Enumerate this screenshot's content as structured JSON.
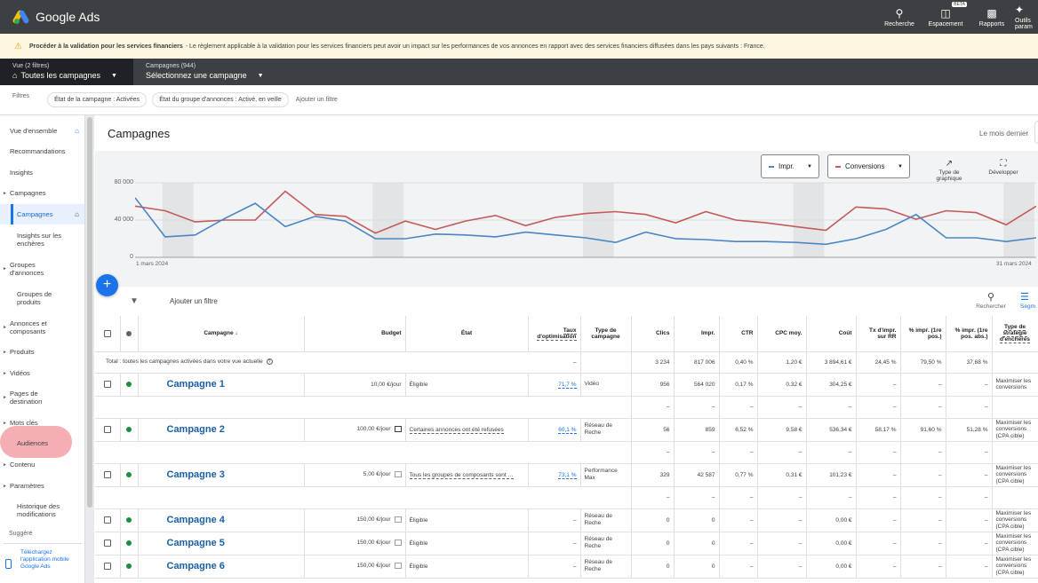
{
  "app": {
    "title": "Google Ads"
  },
  "topbar": {
    "actions": [
      {
        "label": "Recherche",
        "icon": "search-icon"
      },
      {
        "label": "Espacement",
        "icon": "layout-icon",
        "badge": "BÊTA"
      },
      {
        "label": "Rapports",
        "icon": "chart-icon"
      },
      {
        "label": "Outils param",
        "icon": "wrench-icon"
      }
    ]
  },
  "banner": {
    "bold": "Procéder à la validation pour les services financiers",
    "text": "- Le règlement applicable à la validation pour les services financiers peut avoir un impact sur les performances de vos annonces en rapport avec des services financiers diffusées dans les pays suivants : France."
  },
  "scope": {
    "view_sub": "Vue (2 filtres)",
    "view_main": "Toutes les campagnes",
    "campaign_sub": "Campagnes (944)",
    "campaign_main": "Sélectionnez une campagne"
  },
  "filters": {
    "label": "Filtres",
    "chips": [
      "État de la campagne : Activées",
      "État du groupe d'annonces : Activé, en veille"
    ],
    "add": "Ajouter un filtre"
  },
  "sidebar": {
    "items": [
      {
        "label": "Vue d'ensemble",
        "home": true
      },
      {
        "label": "Recommandations"
      },
      {
        "label": "Insights"
      },
      {
        "label": "Campagnes",
        "bullet": true
      },
      {
        "label": "Campagnes",
        "active": true,
        "home": true
      },
      {
        "label": "Insights sur les enchères"
      },
      {
        "label": "Groupes d'annonces",
        "bullet": true
      },
      {
        "label": "Groupes de produits"
      },
      {
        "label": "Annonces et composants",
        "bullet": true
      },
      {
        "label": "Produits",
        "bullet": true
      },
      {
        "label": "Vidéos",
        "bullet": true
      },
      {
        "label": "Pages de destination",
        "bullet": true
      },
      {
        "label": "Mots clés",
        "bullet": true
      },
      {
        "label": "Audiences"
      },
      {
        "label": "Contenu",
        "bullet": true
      },
      {
        "label": "Paramètres",
        "bullet": true
      },
      {
        "label": "Historique des modifications"
      }
    ],
    "suggest": "Suggéré",
    "download": "Téléchargez l'application mobile Google Ads"
  },
  "main": {
    "title": "Campagnes",
    "date_range": "Le mois dernier"
  },
  "chart": {
    "metric1": "Impr.",
    "metric2": "Conversions",
    "color1": "#4a86c5",
    "color2": "#c45a5a",
    "tool1": "Type de graphique",
    "tool2": "Développer"
  },
  "chart_data": {
    "type": "line",
    "x_start_label": "1 mars 2024",
    "x_end_label": "31 mars 2024",
    "yticks": [
      "80 000",
      "40 000",
      "0"
    ],
    "ylim": [
      0,
      80000
    ],
    "series": [
      {
        "name": "Impr.",
        "values": [
          64000,
          22000,
          24000,
          42000,
          58000,
          33000,
          44000,
          39000,
          20000,
          20000,
          25000,
          24000,
          22000,
          27000,
          24000,
          21000,
          16000,
          27000,
          20000,
          19000,
          17000,
          17000,
          16000,
          14000,
          20000,
          30000,
          46000,
          21000,
          21000,
          17000,
          21000
        ]
      },
      {
        "name": "Conversions",
        "values": [
          55000,
          50000,
          38000,
          40000,
          40000,
          71000,
          46000,
          44000,
          26000,
          39000,
          30000,
          39000,
          45000,
          34000,
          43000,
          47000,
          49000,
          46000,
          37000,
          49000,
          40000,
          37000,
          33000,
          29000,
          54000,
          52000,
          41000,
          50000,
          48000,
          35000,
          55000
        ]
      }
    ]
  },
  "table_tools": {
    "add_filter": "Ajouter un filtre",
    "search": "Rechercher",
    "segment": "Segm"
  },
  "table": {
    "headers": {
      "campaign": "Campagne",
      "budget": "Budget",
      "status": "État",
      "opt": "Taux d'optimisation",
      "type": "Type de campagne",
      "clicks": "Clics",
      "impr": "Impr.",
      "ctr": "CTR",
      "cpc": "CPC moy.",
      "cost": "Coût",
      "rr": "Tx d'impr. sur RR",
      "top": "% impr. (1re pos.)",
      "abs": "% impr. (1re pos. abs.)",
      "strategy": "Type de stratégie d'enchères"
    },
    "total": {
      "label": "Total : toutes les campagnes activées dans votre vue actuelle",
      "opt": "–",
      "clicks": "3 234",
      "impr": "817 006",
      "ctr": "0,40 %",
      "cpc": "1,20 €",
      "cost": "3 894,61 €",
      "rr": "24,45 %",
      "top": "79,50 %",
      "abs": "37,68 %"
    },
    "rows": [
      {
        "name": "Campagne 1",
        "budget": "10,00 €/jour",
        "status": "Éligible",
        "opt": "71,7 %",
        "type": "Vidéo",
        "clicks": "956",
        "impr": "564 020",
        "ctr": "0,17 %",
        "cpc": "0,32 €",
        "cost": "304,25 €",
        "rr": "–",
        "top": "–",
        "abs": "–",
        "strategy": "Maximiser les conversions"
      },
      {
        "name": "Campagne 2",
        "budget": "100,00 €/jour",
        "status": "Certaines annonces ont été refusées",
        "opt": "60,1 %",
        "type": "Réseau de Reche",
        "clicks": "56",
        "impr": "859",
        "ctr": "6,52 %",
        "cpc": "9,58 €",
        "cost": "536,34 €",
        "rr": "58,17 %",
        "top": "91,60 %",
        "abs": "51,28 %",
        "strategy": "Maximiser les conversions (CPA cible)"
      },
      {
        "name": "Campagne 3",
        "budget": "5,00 €/jour",
        "status": "Tous les groupes de composants sont …",
        "opt": "73,1 %",
        "type": "Performance Max",
        "clicks": "329",
        "impr": "42 587",
        "ctr": "0,77 %",
        "cpc": "0,31 €",
        "cost": "101,23 €",
        "rr": "–",
        "top": "–",
        "abs": "–",
        "strategy": "Maximiser les conversions (CPA cible)"
      },
      {
        "name": "Campagne 4",
        "budget": "150,00 €/jour",
        "status": "Éligible",
        "opt": "–",
        "type": "Réseau de Reche",
        "clicks": "0",
        "impr": "0",
        "ctr": "–",
        "cpc": "–",
        "cost": "0,00 €",
        "rr": "–",
        "top": "–",
        "abs": "–",
        "strategy": "Maximiser les conversions (CPA cible)"
      },
      {
        "name": "Campagne 5",
        "budget": "150,00 €/jour",
        "status": "Éligible",
        "opt": "–",
        "type": "Réseau de Reche",
        "clicks": "0",
        "impr": "0",
        "ctr": "–",
        "cpc": "–",
        "cost": "0,00 €",
        "rr": "–",
        "top": "–",
        "abs": "–",
        "strategy": "Maximiser les conversions (CPA cible)"
      },
      {
        "name": "Campagne 6",
        "budget": "150,00 €/jour",
        "status": "Éligible",
        "opt": "–",
        "type": "Réseau de Reche",
        "clicks": "0",
        "impr": "0",
        "ctr": "–",
        "cpc": "–",
        "cost": "0,00 €",
        "rr": "–",
        "top": "–",
        "abs": "–",
        "strategy": "Maximiser les conversions (CPA cible)"
      }
    ],
    "dash": "–"
  }
}
